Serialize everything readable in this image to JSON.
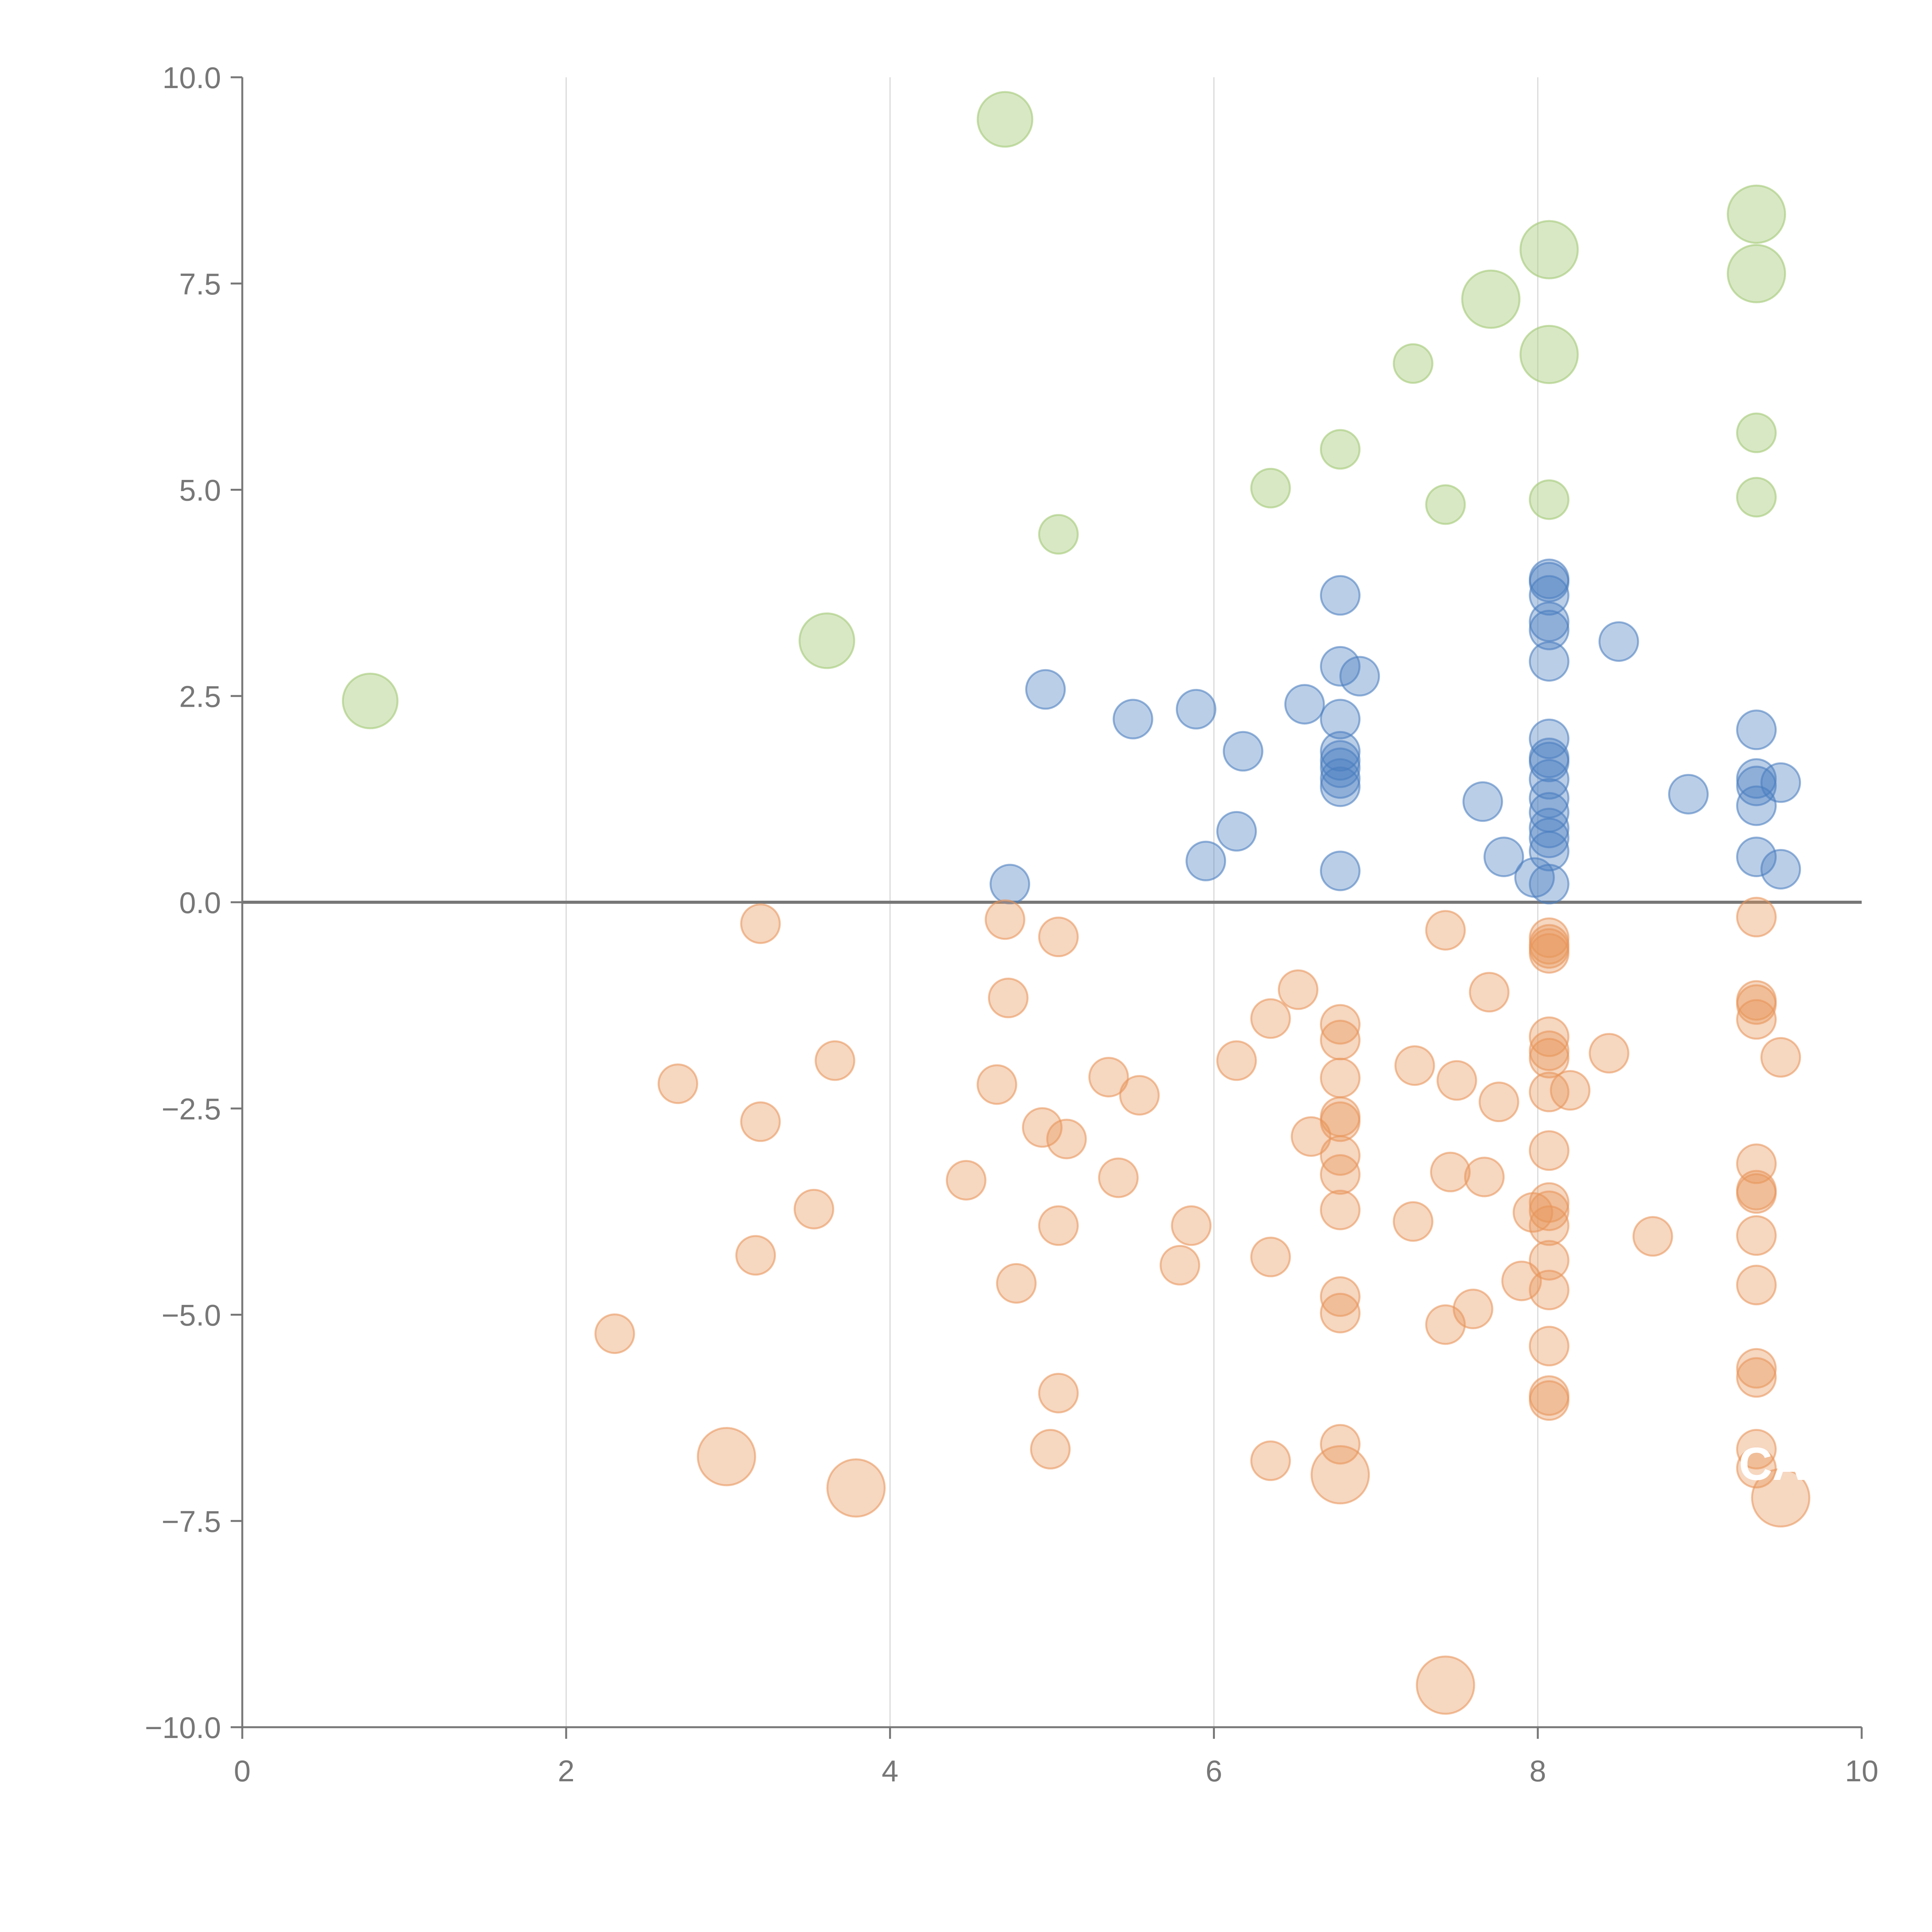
{
  "colors": {
    "background": "#ffffff",
    "axis": "#777777",
    "zero_line": "#777777",
    "grid": "#d9d9d9",
    "tick_text": "#777777",
    "blue": "#4a7ebf",
    "orange": "#e8955a",
    "green": "#a9cc7e"
  },
  "chart_data": {
    "type": "scatter",
    "title": "",
    "xlabel": "",
    "ylabel": "",
    "xlim": [
      0,
      10
    ],
    "ylim": [
      -10,
      10
    ],
    "xticks": [
      0,
      2,
      4,
      6,
      8,
      10
    ],
    "xtick_labels": [
      "0",
      "2",
      "4",
      "6",
      "8",
      "10"
    ],
    "yticks": [
      10,
      7.5,
      5,
      2.5,
      0,
      -2.5,
      -5,
      -7.5,
      -10
    ],
    "ytick_labels": [
      "10.0",
      "7.5",
      "5.0",
      "2.5",
      "0.0",
      "−2.5",
      "−5.0",
      "−7.5",
      "−10.0"
    ],
    "x_grid": true,
    "y_grid": false,
    "zero_line": true,
    "corner_annotation": "CA",
    "series": [
      {
        "name": "blue",
        "color": "#4a7ebf",
        "opacity": 0.38,
        "points": [
          [
            4.74,
            0.22,
            1
          ],
          [
            4.96,
            2.58,
            1
          ],
          [
            5.5,
            2.22,
            1
          ],
          [
            5.89,
            2.34,
            1
          ],
          [
            5.95,
            0.5,
            1
          ],
          [
            6.14,
            0.86,
            1
          ],
          [
            6.18,
            1.83,
            1
          ],
          [
            6.56,
            2.4,
            1
          ],
          [
            6.78,
            3.72,
            1
          ],
          [
            6.78,
            2.86,
            1
          ],
          [
            6.78,
            2.22,
            1
          ],
          [
            6.78,
            1.83,
            1
          ],
          [
            6.78,
            1.72,
            1
          ],
          [
            6.78,
            1.63,
            1
          ],
          [
            6.78,
            1.5,
            1
          ],
          [
            6.78,
            1.4,
            1
          ],
          [
            6.78,
            0.38,
            1
          ],
          [
            6.9,
            2.74,
            1
          ],
          [
            7.66,
            1.22,
            1
          ],
          [
            7.79,
            0.55,
            1
          ],
          [
            7.98,
            0.3,
            1
          ],
          [
            8.07,
            3.92,
            1
          ],
          [
            8.07,
            3.88,
            1
          ],
          [
            8.07,
            3.72,
            1
          ],
          [
            8.07,
            3.4,
            1
          ],
          [
            8.07,
            3.3,
            1
          ],
          [
            8.07,
            2.92,
            1
          ],
          [
            8.07,
            1.98,
            1
          ],
          [
            8.07,
            1.75,
            1
          ],
          [
            8.07,
            1.7,
            1
          ],
          [
            8.07,
            1.49,
            1
          ],
          [
            8.07,
            1.26,
            1
          ],
          [
            8.07,
            1.09,
            1
          ],
          [
            8.07,
            0.9,
            1
          ],
          [
            8.07,
            0.78,
            1
          ],
          [
            8.07,
            0.62,
            1
          ],
          [
            8.07,
            0.22,
            1
          ],
          [
            8.5,
            3.16,
            1
          ],
          [
            8.93,
            1.31,
            1
          ],
          [
            9.35,
            2.09,
            1
          ],
          [
            9.35,
            1.5,
            1
          ],
          [
            9.35,
            1.41,
            1
          ],
          [
            9.35,
            1.17,
            1
          ],
          [
            9.35,
            0.55,
            1
          ],
          [
            9.5,
            1.45,
            1
          ],
          [
            9.5,
            0.4,
            1
          ]
        ]
      },
      {
        "name": "orange",
        "color": "#e8955a",
        "opacity": 0.38,
        "points": [
          [
            2.3,
            -5.23,
            1
          ],
          [
            2.69,
            -2.2,
            1
          ],
          [
            2.99,
            -6.72,
            2.2
          ],
          [
            3.17,
            -4.28,
            1
          ],
          [
            3.2,
            -2.66,
            1
          ],
          [
            3.2,
            -0.26,
            1
          ],
          [
            3.53,
            -3.72,
            1
          ],
          [
            3.66,
            -1.92,
            1
          ],
          [
            3.79,
            -7.1,
            2.2
          ],
          [
            4.47,
            -3.37,
            1
          ],
          [
            4.66,
            -2.21,
            1
          ],
          [
            4.71,
            -0.21,
            1
          ],
          [
            4.73,
            -1.16,
            1
          ],
          [
            4.78,
            -4.62,
            1
          ],
          [
            4.94,
            -2.73,
            1
          ],
          [
            4.99,
            -6.63,
            1
          ],
          [
            5.04,
            -0.42,
            1
          ],
          [
            5.04,
            -3.92,
            1
          ],
          [
            5.04,
            -5.95,
            1
          ],
          [
            5.09,
            -2.87,
            1
          ],
          [
            5.35,
            -2.12,
            1
          ],
          [
            5.41,
            -3.34,
            1
          ],
          [
            5.54,
            -2.34,
            1
          ],
          [
            5.79,
            -4.4,
            1
          ],
          [
            5.86,
            -3.92,
            1
          ],
          [
            6.14,
            -1.92,
            1
          ],
          [
            6.35,
            -1.41,
            1
          ],
          [
            6.35,
            -4.3,
            1
          ],
          [
            6.35,
            -6.77,
            1
          ],
          [
            6.52,
            -1.06,
            1
          ],
          [
            6.6,
            -2.84,
            1
          ],
          [
            6.78,
            -1.48,
            1
          ],
          [
            6.78,
            -1.67,
            1
          ],
          [
            6.78,
            -2.13,
            1
          ],
          [
            6.78,
            -2.6,
            1
          ],
          [
            6.78,
            -2.66,
            1
          ],
          [
            6.78,
            -3.07,
            1
          ],
          [
            6.78,
            -3.3,
            1
          ],
          [
            6.78,
            -3.73,
            1
          ],
          [
            6.78,
            -4.78,
            1
          ],
          [
            6.78,
            -4.98,
            1
          ],
          [
            6.78,
            -6.57,
            1
          ],
          [
            6.78,
            -6.94,
            2.2
          ],
          [
            7.23,
            -3.87,
            1
          ],
          [
            7.24,
            -1.98,
            1
          ],
          [
            7.43,
            -0.34,
            1
          ],
          [
            7.43,
            -5.12,
            1
          ],
          [
            7.43,
            -9.49,
            2.2
          ],
          [
            7.46,
            -3.27,
            1
          ],
          [
            7.5,
            -2.16,
            1
          ],
          [
            7.6,
            -4.93,
            1
          ],
          [
            7.67,
            -3.33,
            1
          ],
          [
            7.7,
            -1.09,
            1
          ],
          [
            7.76,
            -2.42,
            1
          ],
          [
            7.9,
            -4.59,
            1
          ],
          [
            8.07,
            -0.43,
            1
          ],
          [
            8.07,
            -0.51,
            1
          ],
          [
            8.07,
            -0.56,
            1
          ],
          [
            8.07,
            -0.62,
            1
          ],
          [
            8.07,
            -1.63,
            1
          ],
          [
            8.07,
            -1.8,
            1
          ],
          [
            8.07,
            -1.89,
            1
          ],
          [
            8.07,
            -2.3,
            1
          ],
          [
            8.07,
            -3.01,
            1
          ],
          [
            8.07,
            -3.64,
            1
          ],
          [
            8.07,
            -3.74,
            1
          ],
          [
            8.07,
            -3.92,
            1
          ],
          [
            8.07,
            -4.34,
            1
          ],
          [
            8.07,
            -4.7,
            1
          ],
          [
            8.07,
            -5.38,
            1
          ],
          [
            8.07,
            -5.98,
            1
          ],
          [
            8.07,
            -6.04,
            1
          ],
          [
            7.97,
            -3.76,
            1
          ],
          [
            8.2,
            -2.28,
            1
          ],
          [
            8.44,
            -1.83,
            1
          ],
          [
            8.71,
            -4.05,
            1
          ],
          [
            9.35,
            -0.18,
            1
          ],
          [
            9.35,
            -1.19,
            1
          ],
          [
            9.35,
            -1.24,
            1
          ],
          [
            9.35,
            -1.42,
            1
          ],
          [
            9.35,
            -3.17,
            1
          ],
          [
            9.35,
            -3.49,
            1
          ],
          [
            9.35,
            -3.53,
            1
          ],
          [
            9.35,
            -4.04,
            1
          ],
          [
            9.35,
            -4.64,
            1
          ],
          [
            9.35,
            -5.65,
            1
          ],
          [
            9.35,
            -5.76,
            1
          ],
          [
            9.35,
            -6.63,
            1
          ],
          [
            9.35,
            -6.86,
            1
          ],
          [
            9.5,
            -1.88,
            1
          ],
          [
            9.5,
            -7.22,
            2.2
          ]
        ]
      },
      {
        "name": "green",
        "color": "#a9cc7e",
        "opacity": 0.45,
        "points": [
          [
            0.79,
            2.44,
            2.0
          ],
          [
            3.61,
            3.17,
            2.0
          ],
          [
            4.71,
            9.49,
            2.0
          ],
          [
            5.04,
            4.46,
            1
          ],
          [
            6.35,
            5.02,
            1
          ],
          [
            6.78,
            5.49,
            1
          ],
          [
            7.23,
            6.53,
            1
          ],
          [
            7.43,
            4.82,
            1
          ],
          [
            7.71,
            7.31,
            2.2
          ],
          [
            8.07,
            7.91,
            2.2
          ],
          [
            8.07,
            6.64,
            2.2
          ],
          [
            8.07,
            4.88,
            1
          ],
          [
            9.35,
            8.34,
            2.2
          ],
          [
            9.35,
            7.62,
            2.2
          ],
          [
            9.35,
            5.69,
            1
          ],
          [
            9.35,
            4.91,
            1
          ]
        ]
      }
    ]
  }
}
